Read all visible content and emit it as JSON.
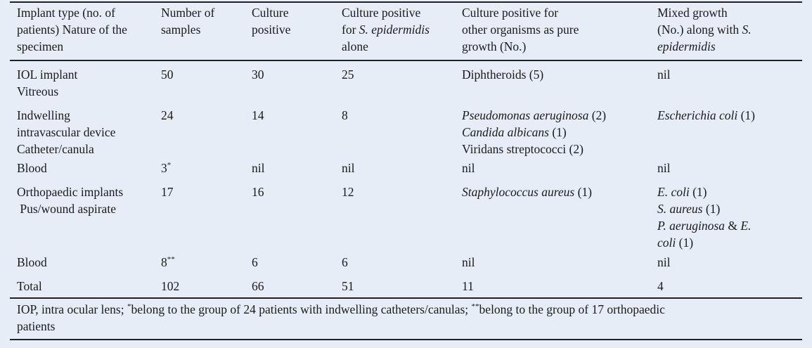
{
  "table": {
    "headers": [
      [
        "Implant type (no. of",
        "patients) Nature of the",
        "specimen"
      ],
      [
        "Number of",
        "samples"
      ],
      [
        "Culture",
        "positive"
      ],
      [
        "Culture positive",
        "for S. epidermidis",
        "alone"
      ],
      [
        "Culture positive for",
        "other organisms as pure",
        "growth (No.)"
      ],
      [
        "Mixed growth",
        "(No.) along with S.",
        "epidermidis"
      ]
    ],
    "header_italic": {
      "s_epidermidis": "S. epidermidis",
      "s_italic": "S.",
      "epidermidis": "epidermidis"
    },
    "rows": [
      {
        "specimen": [
          "IOL implant",
          "Vitreous"
        ],
        "samples": "50",
        "positive": "30",
        "sepi_alone": "25",
        "other": [
          "Diphtheroids (5)"
        ],
        "mixed": [
          "nil"
        ]
      },
      {
        "specimen": [
          "Indwelling",
          "intravascular device",
          "Catheter/canula"
        ],
        "samples": "24",
        "positive": "14",
        "sepi_alone": "8",
        "other": [
          {
            "italic": "Pseudomonas aeruginosa",
            "rest": " (2)"
          },
          {
            "italic": "Candida albicans",
            "rest": " (1)"
          },
          {
            "italic": "",
            "rest": "Viridans streptococci (2)"
          }
        ],
        "mixed": [
          {
            "italic": "Escherichia coli",
            "rest": " (1)"
          }
        ]
      },
      {
        "specimen": [
          "Blood"
        ],
        "samples": "3",
        "samples_mark": "*",
        "positive": "nil",
        "sepi_alone": "nil",
        "other": [
          "nil"
        ],
        "mixed": [
          "nil"
        ]
      },
      {
        "specimen": [
          "Orthopaedic implants",
          " Pus/wound aspirate"
        ],
        "samples": "17",
        "positive": "16",
        "sepi_alone": "12",
        "other": [
          {
            "italic": "Staphylococcus aureus",
            "rest": " (1)"
          }
        ],
        "mixed": [
          {
            "italic": "E. coli",
            "rest": " (1)"
          },
          {
            "italic": "S. aureus",
            "rest": " (1)"
          },
          {
            "italic": "P. aeruginosa",
            "rest": " & ",
            "italic2": "E."
          },
          {
            "italic": "coli",
            "rest": " (1)"
          }
        ]
      },
      {
        "specimen": [
          "Blood"
        ],
        "samples": "8",
        "samples_mark": "**",
        "positive": "6",
        "sepi_alone": "6",
        "other": [
          "nil"
        ],
        "mixed": [
          "nil"
        ]
      },
      {
        "specimen": [
          "Total"
        ],
        "samples": "102",
        "positive": "66",
        "sepi_alone": "51",
        "other": [
          "11"
        ],
        "mixed": [
          "4"
        ]
      }
    ],
    "footnote": {
      "part1": "IOP, intra ocular lens; ",
      "mark1": "*",
      "part2": "belong to the group of 24 patients with indwelling catheters/canulas; ",
      "mark2": "**",
      "part3": "belong to the group of 17 orthopaedic",
      "part4": "patients"
    }
  }
}
